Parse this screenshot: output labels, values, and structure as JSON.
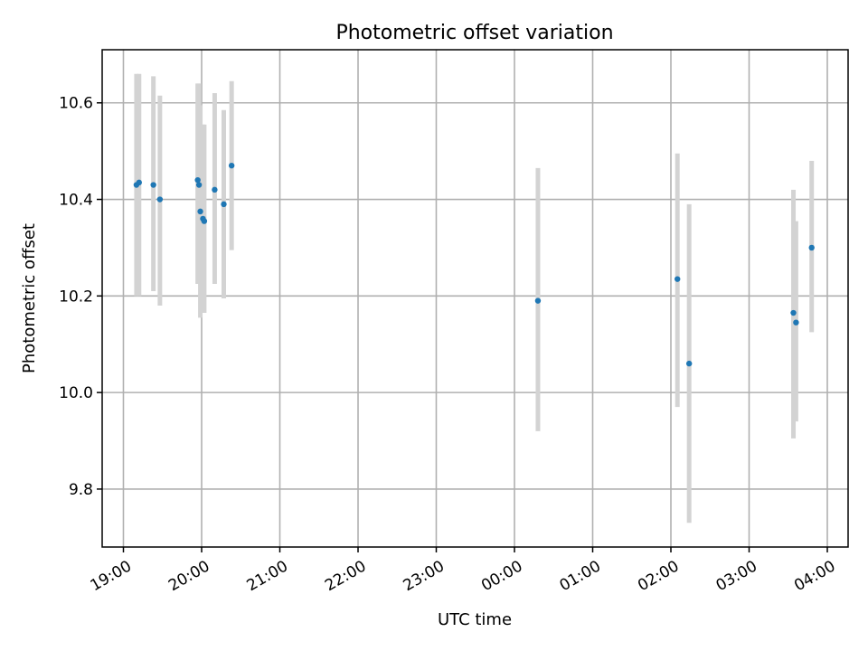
{
  "chart_data": {
    "type": "scatter",
    "title": "Photometric offset variation",
    "xlabel": "UTC time",
    "ylabel": "Photometric offset",
    "grid": true,
    "x_ticks": [
      "19:00",
      "20:00",
      "21:00",
      "22:00",
      "23:00",
      "00:00",
      "01:00",
      "02:00",
      "03:00",
      "04:00"
    ],
    "y_ticks": [
      9.8,
      10.0,
      10.2,
      10.4,
      10.6
    ],
    "xlim": [
      "19:00",
      "04:00"
    ],
    "ylim": [
      9.68,
      10.71
    ],
    "series": [
      {
        "marker_color": "#1f77b4",
        "errorbar_color": "#d3d3d3",
        "points": [
          {
            "x": "19:10",
            "y": 10.43,
            "lo": 10.2,
            "hi": 10.66
          },
          {
            "x": "19:12",
            "y": 10.435,
            "lo": 10.2,
            "hi": 10.66
          },
          {
            "x": "19:23",
            "y": 10.43,
            "lo": 10.21,
            "hi": 10.655
          },
          {
            "x": "19:28",
            "y": 10.4,
            "lo": 10.18,
            "hi": 10.615
          },
          {
            "x": "19:57",
            "y": 10.44,
            "lo": 10.225,
            "hi": 10.64
          },
          {
            "x": "19:58",
            "y": 10.43,
            "lo": 10.225,
            "hi": 10.64
          },
          {
            "x": "19:59",
            "y": 10.375,
            "lo": 10.155,
            "hi": 10.595
          },
          {
            "x": "20:01",
            "y": 10.36,
            "lo": 10.165,
            "hi": 10.555
          },
          {
            "x": "20:02",
            "y": 10.355,
            "lo": 10.165,
            "hi": 10.555
          },
          {
            "x": "20:10",
            "y": 10.42,
            "lo": 10.225,
            "hi": 10.62
          },
          {
            "x": "20:17",
            "y": 10.39,
            "lo": 10.195,
            "hi": 10.585
          },
          {
            "x": "20:23",
            "y": 10.47,
            "lo": 10.295,
            "hi": 10.645
          },
          {
            "x": "00:18",
            "y": 10.19,
            "lo": 9.92,
            "hi": 10.465
          },
          {
            "x": "02:05",
            "y": 10.235,
            "lo": 9.97,
            "hi": 10.495
          },
          {
            "x": "02:14",
            "y": 10.06,
            "lo": 9.73,
            "hi": 10.39
          },
          {
            "x": "03:34",
            "y": 10.165,
            "lo": 9.905,
            "hi": 10.42
          },
          {
            "x": "03:36",
            "y": 10.145,
            "lo": 9.94,
            "hi": 10.355
          },
          {
            "x": "03:48",
            "y": 10.3,
            "lo": 10.125,
            "hi": 10.48
          }
        ]
      }
    ]
  }
}
